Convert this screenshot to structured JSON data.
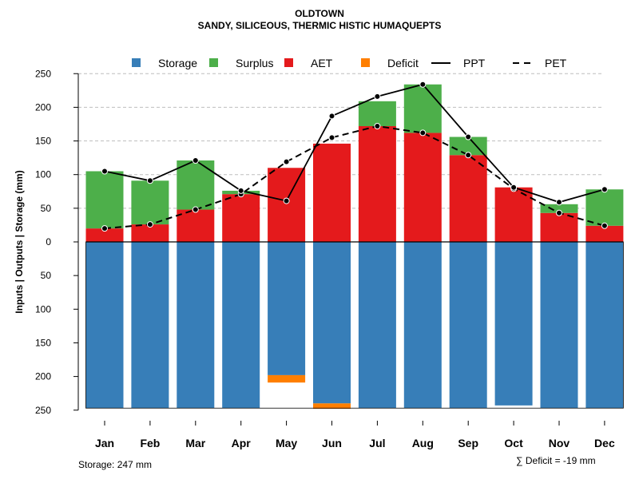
{
  "title": "OLDTOWN",
  "subtitle": "SANDY, SILICEOUS, THERMIC HISTIC HUMAQUEPTS",
  "storage_note": "Storage: 247 mm",
  "deficit_note": "∑ Deficit = -19 mm",
  "colors": {
    "storage": "#377EB8",
    "surplus": "#4DAF4A",
    "aet": "#E41A1C",
    "deficit": "#FF7F00",
    "line": "#000000",
    "grid": "#BEBEBE"
  },
  "chart_data": {
    "type": "bar",
    "ylabel": "Inputs | Outputs | Storage    (mm)",
    "ylim": [
      -250,
      250
    ],
    "yticks": [
      250,
      200,
      150,
      100,
      50,
      0,
      -50,
      -100,
      -150,
      -200,
      -250
    ],
    "ytick_labels": [
      "250",
      "200",
      "150",
      "100",
      "50",
      "0",
      "50",
      "100",
      "150",
      "200",
      "250"
    ],
    "categories": [
      "Jan",
      "Feb",
      "Mar",
      "Apr",
      "May",
      "Jun",
      "Jul",
      "Aug",
      "Sep",
      "Oct",
      "Nov",
      "Dec"
    ],
    "legend": [
      "Storage",
      "Surplus",
      "AET",
      "Deficit",
      "PPT",
      "PET"
    ],
    "series": [
      {
        "name": "AET",
        "values": [
          20,
          26,
          48,
          71,
          110,
          146,
          172,
          162,
          129,
          81,
          43,
          24
        ]
      },
      {
        "name": "Surplus",
        "values": [
          85,
          65,
          73,
          5,
          0,
          0,
          37,
          72,
          27,
          0,
          13,
          54
        ]
      },
      {
        "name": "Storage",
        "values": [
          247,
          247,
          247,
          247,
          198,
          240,
          247,
          247,
          247,
          243,
          247,
          247
        ]
      },
      {
        "name": "Deficit",
        "values": [
          0,
          0,
          0,
          0,
          11,
          8,
          0,
          0,
          0,
          0,
          0,
          0
        ]
      },
      {
        "name": "PPT",
        "values": [
          105,
          91,
          121,
          76,
          61,
          187,
          216,
          234,
          156,
          81,
          59,
          78
        ]
      },
      {
        "name": "PET",
        "values": [
          20,
          26,
          48,
          71,
          119,
          155,
          172,
          162,
          129,
          79,
          43,
          24
        ]
      }
    ]
  }
}
